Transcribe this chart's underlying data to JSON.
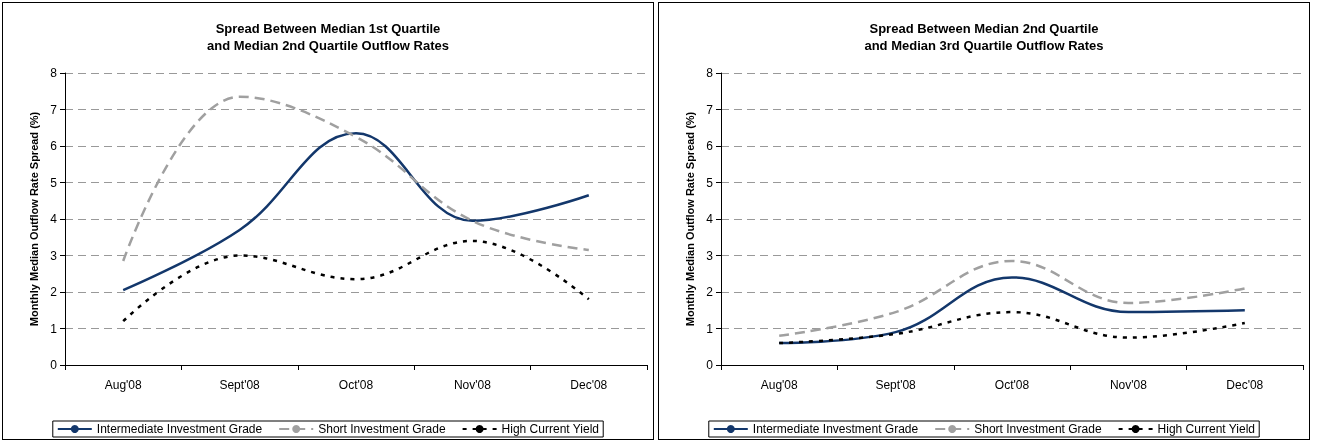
{
  "chart_data": [
    {
      "type": "line",
      "title": "Spread Between Median 1st Quartile\nand Median 2nd Quartile Outflow Rates",
      "ylabel": "Monthly Median Outflow Rate Spread (%)",
      "categories": [
        "Aug'08",
        "Sept'08",
        "Oct'08",
        "Nov'08",
        "Dec'08"
      ],
      "ylim": [
        0,
        8
      ],
      "yticks": [
        0,
        1,
        2,
        3,
        4,
        5,
        6,
        7,
        8
      ],
      "grid": "y",
      "legend": "bottom",
      "marker": "none",
      "series": [
        {
          "name": "Intermediate Investment Grade",
          "color": "#13376b",
          "line_style": "solid",
          "values": [
            2.05,
            3.7,
            6.35,
            3.95,
            4.65
          ]
        },
        {
          "name": "Short Investment Grade",
          "color": "#a0a0a0",
          "line_style": "dashed",
          "values": [
            2.85,
            7.35,
            6.25,
            3.95,
            3.15
          ]
        },
        {
          "name": "High Current Yield",
          "color": "#000000",
          "line_style": "dotted",
          "values": [
            1.2,
            3.0,
            2.35,
            3.4,
            1.8
          ]
        }
      ]
    },
    {
      "type": "line",
      "title": "Spread Between Median 2nd Quartile\nand Median 3rd Quartile Outflow Rates",
      "ylabel": "Monthly Median Outflow Rate Spread (%)",
      "categories": [
        "Aug'08",
        "Sept'08",
        "Oct'08",
        "Nov'08",
        "Dec'08"
      ],
      "ylim": [
        0,
        8
      ],
      "yticks": [
        0,
        1,
        2,
        3,
        4,
        5,
        6,
        7,
        8
      ],
      "grid": "y",
      "legend": "bottom",
      "marker": "none",
      "series": [
        {
          "name": "Intermediate Investment Grade",
          "color": "#13376b",
          "line_style": "solid",
          "values": [
            0.6,
            0.9,
            2.4,
            1.45,
            1.5
          ]
        },
        {
          "name": "Short Investment Grade",
          "color": "#a0a0a0",
          "line_style": "dashed",
          "values": [
            0.8,
            1.45,
            2.85,
            1.7,
            2.1
          ]
        },
        {
          "name": "High Current Yield",
          "color": "#000000",
          "line_style": "dotted",
          "values": [
            0.6,
            0.85,
            1.45,
            0.75,
            1.15
          ]
        }
      ]
    }
  ]
}
